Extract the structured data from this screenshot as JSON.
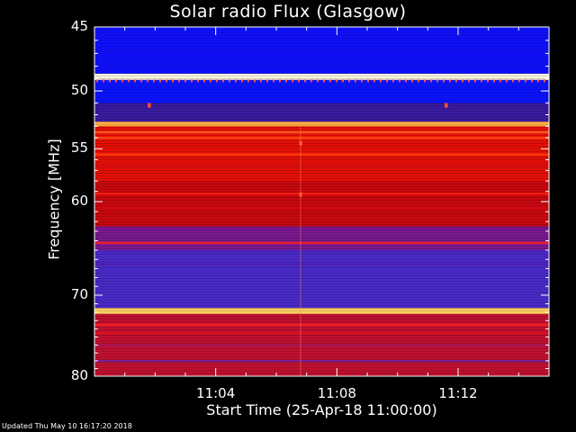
{
  "chart_data": {
    "type": "heatmap",
    "title": "Solar radio Flux (Glasgow)",
    "xlabel": "Start Time (25-Apr-18 11:00:00)",
    "ylabel": "Frequency [MHz]",
    "x_ticks": [
      "11:04",
      "11:08",
      "11:12"
    ],
    "x_tick_minutes": [
      4,
      8,
      12
    ],
    "xlim_minutes": [
      0,
      15
    ],
    "y_ticks": [
      45,
      50,
      55,
      60,
      70,
      80
    ],
    "ylim_mhz": [
      45,
      80
    ],
    "y_scale": "log",
    "grid": false,
    "colormap": [
      "#000000",
      "#0000ff",
      "#ff0000",
      "#ffff00",
      "#ffffff"
    ],
    "bands_mhz": [
      {
        "from": 45.0,
        "to": 48.6,
        "color": "#1010ff"
      },
      {
        "from": 48.6,
        "to": 49.1,
        "color": "#fff8e0"
      },
      {
        "from": 49.1,
        "to": 51.0,
        "color": "#0a14ff"
      },
      {
        "from": 51.0,
        "to": 52.6,
        "color": "#3a1aa0"
      },
      {
        "from": 52.6,
        "to": 53.0,
        "color": "#ffb040"
      },
      {
        "from": 53.0,
        "to": 58.0,
        "color": "#e41008"
      },
      {
        "from": 58.0,
        "to": 62.5,
        "color": "#c80810"
      },
      {
        "from": 62.5,
        "to": 65.0,
        "color": "#7a1890"
      },
      {
        "from": 65.0,
        "to": 71.5,
        "color": "#4a2ac8"
      },
      {
        "from": 71.5,
        "to": 72.2,
        "color": "#ffd060"
      },
      {
        "from": 72.2,
        "to": 80.0,
        "color": "#c01030"
      }
    ],
    "lines_mhz": [
      {
        "f": 53.5,
        "color": "#ff6020"
      },
      {
        "f": 54.0,
        "color": "#ff5010"
      },
      {
        "f": 55.5,
        "color": "#ff4010"
      },
      {
        "f": 56.5,
        "color": "#d00818"
      },
      {
        "f": 59.2,
        "color": "#ff2010"
      },
      {
        "f": 60.6,
        "color": "#d00818"
      },
      {
        "f": 64.2,
        "color": "#ff2020"
      },
      {
        "f": 66.5,
        "color": "#5020b0"
      },
      {
        "f": 73.5,
        "color": "#ff2020"
      },
      {
        "f": 74.5,
        "color": "#e01020"
      },
      {
        "f": 76.0,
        "color": "#a01860"
      },
      {
        "f": 78.0,
        "color": "#7020a0"
      }
    ],
    "spots": [
      {
        "t": 6.8,
        "f": 59.3
      },
      {
        "t": 6.8,
        "f": 54.5
      },
      {
        "t": 1.8,
        "f": 51.2
      },
      {
        "t": 11.6,
        "f": 51.2
      }
    ]
  },
  "footer": "Updated Thu May 10 16:17:20 2018"
}
